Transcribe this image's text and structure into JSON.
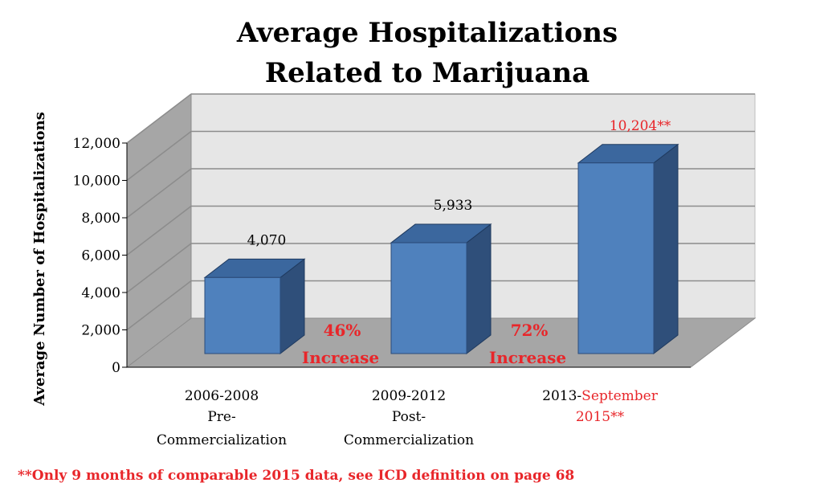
{
  "chart_data": {
    "type": "bar",
    "title_lines": [
      "Average Hospitalizations",
      "Related to Marijuana"
    ],
    "ylabel": "Average Number of Hospitalizations",
    "ylim": [
      0,
      12000
    ],
    "yticks": [
      0,
      2000,
      4000,
      6000,
      8000,
      10000,
      12000
    ],
    "ytick_labels": [
      "0",
      "2,000",
      "4,000",
      "6,000",
      "8,000",
      "10,000",
      "12,000"
    ],
    "categories": [
      {
        "lines": [
          {
            "parts": [
              {
                "text": "2006-2008",
                "red": false
              }
            ]
          },
          {
            "parts": [
              {
                "text": "Pre-",
                "red": false
              }
            ]
          },
          {
            "parts": [
              {
                "text": "Commercialization",
                "red": false
              }
            ]
          }
        ]
      },
      {
        "lines": [
          {
            "parts": [
              {
                "text": "2009-2012",
                "red": false
              }
            ]
          },
          {
            "parts": [
              {
                "text": "Post-",
                "red": false
              }
            ]
          },
          {
            "parts": [
              {
                "text": "Commercialization",
                "red": false
              }
            ]
          }
        ]
      },
      {
        "lines": [
          {
            "parts": [
              {
                "text": "2013-",
                "red": false
              },
              {
                "text": "September",
                "red": true
              }
            ]
          },
          {
            "parts": [
              {
                "text": "2015**",
                "red": true
              }
            ]
          }
        ]
      }
    ],
    "values": [
      4070,
      5933,
      10204
    ],
    "data_labels": [
      {
        "text": "4,070",
        "red": false
      },
      {
        "text": "5,933",
        "red": false
      },
      {
        "text": "10,204**",
        "red": true
      }
    ],
    "annotations": [
      {
        "lines": [
          "46%",
          "Increase"
        ],
        "between": [
          0,
          1
        ]
      },
      {
        "lines": [
          "72%",
          "Increase"
        ],
        "between": [
          1,
          2
        ]
      }
    ],
    "footnote": "**Only 9 months of comparable 2015 data, see ICD definition on page 68",
    "colors": {
      "bar_front": "#4f81bd",
      "bar_top": "#3b679e",
      "bar_side": "#2f4f7a",
      "back_wall": "#e6e6e6",
      "side_wall": "#a6a6a6",
      "floor": "#a6a6a6",
      "gridline": "#8c8c8c",
      "accent_red": "#e8262a"
    }
  }
}
